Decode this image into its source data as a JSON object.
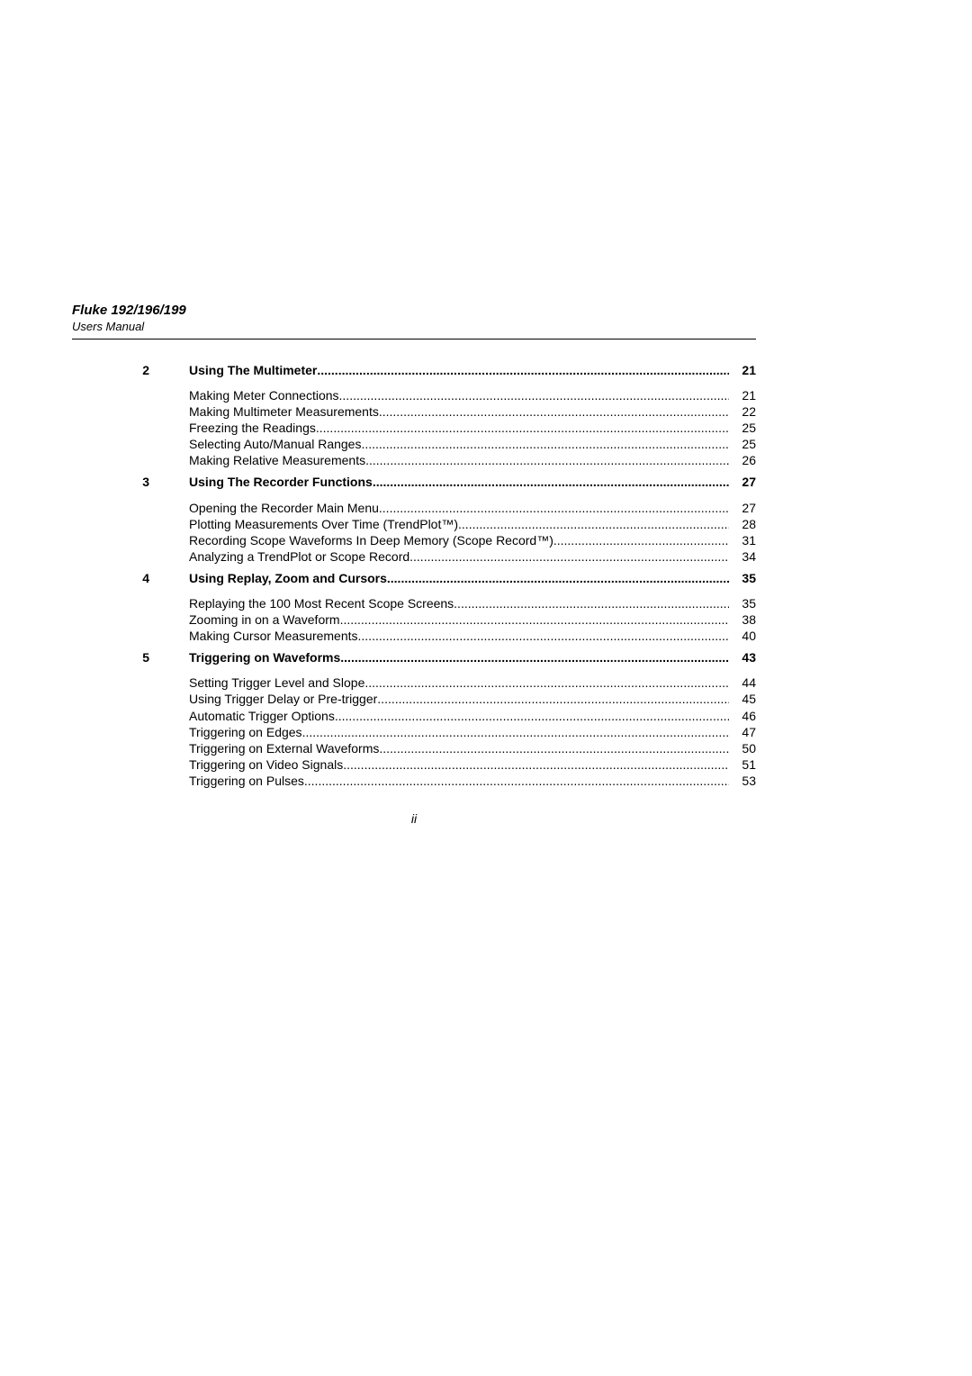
{
  "header": {
    "model": "Fluke 192/196/199",
    "subtitle": "Users Manual"
  },
  "page_number": "ii",
  "dots": "...............................................................................................................................................................................................................",
  "chapters": [
    {
      "num": "2",
      "title": "Using The Multimeter",
      "page": "21",
      "items": [
        {
          "title": "Making Meter Connections",
          "page": "21"
        },
        {
          "title": "Making Multimeter Measurements",
          "page": "22"
        },
        {
          "title": "Freezing the Readings ",
          "page": "25"
        },
        {
          "title": "Selecting Auto/Manual Ranges",
          "page": "25"
        },
        {
          "title": "Making Relative Measurements",
          "page": "26"
        }
      ]
    },
    {
      "num": "3",
      "title": "Using The Recorder Functions",
      "page": "27",
      "items": [
        {
          "title": "Opening the Recorder Main Menu",
          "page": "27"
        },
        {
          "title": "Plotting Measurements Over Time (TrendPlot™)",
          "page": "28"
        },
        {
          "title": "Recording Scope Waveforms In Deep Memory (Scope Record™)",
          "page": "31"
        },
        {
          "title": "Analyzing a TrendPlot or Scope Record ",
          "page": "34"
        }
      ]
    },
    {
      "num": "4",
      "title": "Using Replay, Zoom and Cursors ",
      "page": "35",
      "items": [
        {
          "title": "Replaying the 100 Most Recent Scope Screens ",
          "page": "35"
        },
        {
          "title": "Zooming in on a Waveform ",
          "page": "38"
        },
        {
          "title": "Making Cursor Measurements",
          "page": "40"
        }
      ]
    },
    {
      "num": "5",
      "title": "Triggering on Waveforms ",
      "page": "43",
      "items": [
        {
          "title": "Setting Trigger Level and Slope",
          "page": "44"
        },
        {
          "title": "Using Trigger Delay or Pre-trigger ",
          "page": "45"
        },
        {
          "title": "Automatic Trigger Options",
          "page": "46"
        },
        {
          "title": "Triggering on Edges",
          "page": "47"
        },
        {
          "title": "Triggering on External Waveforms ",
          "page": "50"
        },
        {
          "title": "Triggering on Video Signals",
          "page": "51"
        },
        {
          "title": "Triggering on Pulses ",
          "page": "53"
        }
      ]
    }
  ]
}
